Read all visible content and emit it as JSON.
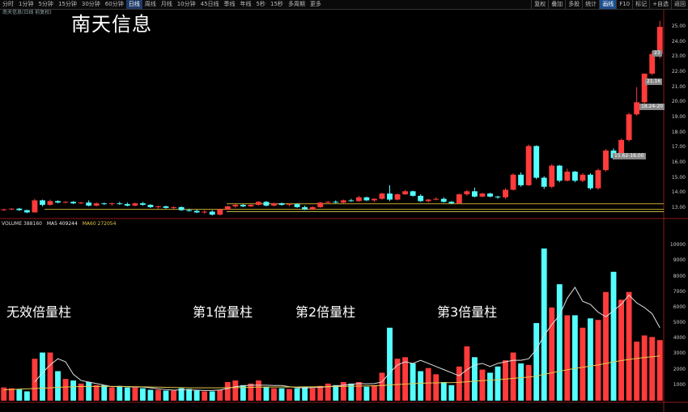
{
  "toolbar": {
    "tabs": [
      "分时",
      "1分钟",
      "5分钟",
      "15分钟",
      "30分钟",
      "60分钟",
      "日线",
      "周线",
      "月线",
      "10分钟",
      "45日线",
      "季线",
      "年线",
      "5秒",
      "15秒",
      "多周期",
      "更多"
    ],
    "active_index": 6,
    "right_tabs": [
      "复权",
      "叠加",
      "多股",
      "统计",
      "画线",
      "F10",
      "标记",
      "+自选",
      "返回"
    ],
    "right_active": 4
  },
  "stock_info": "南天信息(日线 前复权)",
  "title": "南天信息",
  "volume_legend": {
    "label": "VOLUME",
    "value": "388160",
    "ma5": "MA5 409244",
    "ma60": "MA60 272054"
  },
  "annotations": [
    "无效倍量柱",
    "第1倍量柱",
    "第2倍量柱",
    "第3倍量柱"
  ],
  "price_axis": [
    "25.00",
    "24.00",
    "23.00",
    "22.00",
    "21.00",
    "20.00",
    "19.00",
    "18.00",
    "17.00",
    "16.00",
    "15.00",
    "14.00",
    "13.00"
  ],
  "volume_axis": [
    "10000",
    "9000",
    "8000",
    "7000",
    "6000",
    "5000",
    "4000",
    "3000",
    "2000",
    "1000"
  ],
  "price_tags": [
    "23",
    "21.16",
    "18.24-20",
    "15.62-16.00"
  ],
  "colors": {
    "up": "#ff3b3b",
    "down": "#54ffff",
    "ma5": "#e0e0e0",
    "ma60": "#e6c84a",
    "support": "#c8a830"
  },
  "chart_data": {
    "type": "candlestick",
    "price_ylim": [
      12.4,
      25.6
    ],
    "volume_ylim": [
      0,
      11000
    ],
    "candles": [
      [
        12.85,
        12.95,
        12.8,
        12.9
      ],
      [
        12.9,
        12.98,
        12.85,
        12.95
      ],
      [
        12.95,
        13.0,
        12.8,
        12.85
      ],
      [
        12.85,
        12.88,
        12.65,
        12.7
      ],
      [
        12.7,
        13.6,
        12.7,
        13.5
      ],
      [
        13.5,
        13.55,
        13.1,
        13.2
      ],
      [
        13.2,
        13.55,
        13.15,
        13.45
      ],
      [
        13.45,
        13.5,
        13.3,
        13.35
      ],
      [
        13.35,
        13.45,
        13.3,
        13.4
      ],
      [
        13.4,
        13.45,
        13.25,
        13.3
      ],
      [
        13.3,
        13.4,
        13.25,
        13.35
      ],
      [
        13.35,
        13.5,
        13.1,
        13.15
      ],
      [
        13.15,
        13.35,
        13.1,
        13.3
      ],
      [
        13.3,
        13.35,
        13.2,
        13.25
      ],
      [
        13.25,
        13.35,
        13.15,
        13.3
      ],
      [
        13.3,
        13.4,
        13.2,
        13.25
      ],
      [
        13.25,
        13.35,
        13.1,
        13.15
      ],
      [
        13.15,
        13.35,
        13.1,
        13.3
      ],
      [
        13.3,
        13.4,
        13.15,
        13.2
      ],
      [
        13.2,
        13.25,
        13.0,
        13.05
      ],
      [
        13.05,
        13.15,
        12.95,
        13.1
      ],
      [
        13.1,
        13.15,
        12.95,
        13.0
      ],
      [
        13.0,
        13.1,
        12.9,
        13.05
      ],
      [
        13.05,
        13.1,
        12.8,
        12.85
      ],
      [
        12.85,
        12.95,
        12.75,
        12.8
      ],
      [
        12.8,
        12.9,
        12.65,
        12.7
      ],
      [
        12.7,
        12.85,
        12.6,
        12.75
      ],
      [
        12.75,
        12.85,
        12.5,
        12.55
      ],
      [
        12.55,
        12.95,
        12.5,
        12.9
      ],
      [
        12.9,
        13.15,
        12.85,
        13.1
      ],
      [
        13.1,
        13.25,
        13.0,
        13.2
      ],
      [
        13.2,
        13.25,
        13.05,
        13.1
      ],
      [
        13.1,
        13.25,
        13.05,
        13.2
      ],
      [
        13.2,
        13.45,
        13.15,
        13.4
      ],
      [
        13.4,
        13.45,
        13.1,
        13.15
      ],
      [
        13.15,
        13.35,
        13.1,
        13.3
      ],
      [
        13.3,
        13.35,
        13.15,
        13.2
      ],
      [
        13.2,
        13.3,
        13.1,
        13.25
      ],
      [
        13.25,
        13.3,
        13.0,
        13.05
      ],
      [
        13.05,
        13.15,
        12.85,
        12.9
      ],
      [
        12.9,
        13.1,
        12.85,
        13.05
      ],
      [
        13.05,
        13.4,
        13.0,
        13.35
      ],
      [
        13.35,
        13.45,
        13.25,
        13.4
      ],
      [
        13.4,
        13.5,
        13.3,
        13.35
      ],
      [
        13.35,
        13.55,
        13.3,
        13.5
      ],
      [
        13.5,
        13.6,
        13.4,
        13.45
      ],
      [
        13.45,
        13.8,
        13.4,
        13.7
      ],
      [
        13.7,
        13.75,
        13.45,
        13.5
      ],
      [
        13.5,
        13.65,
        13.4,
        13.6
      ],
      [
        13.6,
        14.0,
        13.55,
        13.95
      ],
      [
        13.95,
        14.5,
        13.45,
        13.55
      ],
      [
        13.55,
        13.95,
        13.5,
        13.9
      ],
      [
        13.9,
        14.2,
        13.85,
        14.1
      ],
      [
        14.1,
        14.15,
        13.75,
        13.8
      ],
      [
        13.8,
        13.9,
        13.4,
        13.45
      ],
      [
        13.45,
        13.6,
        13.35,
        13.55
      ],
      [
        13.55,
        13.7,
        13.5,
        13.6
      ],
      [
        13.6,
        13.7,
        13.35,
        13.4
      ],
      [
        13.4,
        13.45,
        13.25,
        13.3
      ],
      [
        13.3,
        13.95,
        13.25,
        13.9
      ],
      [
        13.9,
        14.2,
        13.8,
        14.1
      ],
      [
        14.1,
        14.35,
        13.7,
        13.75
      ],
      [
        13.75,
        14.0,
        13.7,
        13.95
      ],
      [
        13.95,
        14.0,
        13.7,
        13.75
      ],
      [
        13.75,
        13.8,
        13.6,
        13.7
      ],
      [
        13.7,
        14.3,
        13.6,
        14.2
      ],
      [
        14.2,
        15.3,
        14.15,
        15.2
      ],
      [
        15.2,
        15.35,
        14.4,
        14.5
      ],
      [
        14.5,
        17.2,
        14.45,
        17.1
      ],
      [
        17.1,
        17.15,
        14.9,
        15.0
      ],
      [
        15.0,
        15.1,
        14.25,
        14.4
      ],
      [
        14.4,
        15.9,
        14.3,
        15.8
      ],
      [
        15.8,
        15.85,
        14.7,
        14.8
      ],
      [
        14.8,
        15.6,
        14.75,
        15.4
      ],
      [
        15.4,
        15.45,
        14.7,
        14.8
      ],
      [
        14.8,
        15.3,
        14.7,
        15.2
      ],
      [
        15.2,
        15.3,
        14.2,
        14.3
      ],
      [
        14.3,
        15.6,
        14.2,
        15.5
      ],
      [
        15.5,
        16.9,
        15.4,
        16.8
      ],
      [
        16.8,
        16.95,
        16.2,
        16.3
      ],
      [
        16.3,
        17.6,
        16.2,
        17.5
      ],
      [
        17.5,
        19.3,
        17.4,
        19.2
      ],
      [
        19.2,
        21.0,
        19.1,
        20.0
      ],
      [
        20.0,
        21.9,
        19.9,
        21.9
      ],
      [
        21.9,
        23.4,
        21.8,
        23.2
      ],
      [
        23.2,
        25.4,
        22.9,
        25.0
      ]
    ],
    "volumes": [
      850,
      800,
      750,
      600,
      2700,
      3100,
      3100,
      1900,
      1400,
      1300,
      1100,
      1200,
      1000,
      1000,
      850,
      950,
      850,
      850,
      800,
      700,
      700,
      650,
      650,
      800,
      750,
      650,
      600,
      600,
      700,
      1200,
      1300,
      1000,
      1100,
      1300,
      900,
      800,
      800,
      750,
      800,
      900,
      800,
      950,
      1100,
      1000,
      1200,
      1100,
      1200,
      900,
      1000,
      1800,
      4700,
      2700,
      2800,
      2400,
      1900,
      2100,
      1700,
      1200,
      1000,
      2200,
      3500,
      2800,
      2000,
      1800,
      2200,
      2600,
      3100,
      2400,
      2300,
      5000,
      9800,
      6000,
      7500,
      5500,
      5500,
      4700,
      5300,
      5200,
      7000,
      8300,
      6500,
      7000,
      3800,
      4200,
      4100,
      3900
    ],
    "ma5": [
      null,
      null,
      null,
      null,
      1200,
      1800,
      2300,
      2700,
      2500,
      1700,
      1300,
      1200,
      1100,
      1000,
      900,
      920,
      900,
      880,
      880,
      830,
      760,
      720,
      680,
      700,
      700,
      680,
      660,
      660,
      690,
      780,
      900,
      960,
      1000,
      1000,
      1000,
      980,
      980,
      900,
      840,
      820,
      840,
      860,
      900,
      950,
      1000,
      1050,
      1100,
      1080,
      1100,
      1200,
      1800,
      2300,
      2500,
      2400,
      2600,
      2400,
      2200,
      2000,
      1800,
      1600,
      2000,
      2300,
      2400,
      2200,
      2400,
      2500,
      2600,
      2600,
      2700,
      3300,
      4200,
      4900,
      5500,
      6600,
      7300,
      6400,
      6200,
      5700,
      5400,
      5800,
      6200,
      6800,
      6300,
      6000,
      5600,
      4700
    ],
    "ma60": [
      700,
      720,
      740,
      760,
      780,
      800,
      830,
      860,
      880,
      900,
      910,
      920,
      920,
      920,
      920,
      920,
      910,
      900,
      890,
      880,
      870,
      860,
      850,
      840,
      830,
      830,
      830,
      830,
      830,
      840,
      840,
      850,
      860,
      870,
      870,
      880,
      880,
      880,
      880,
      890,
      890,
      900,
      900,
      910,
      920,
      930,
      940,
      950,
      960,
      980,
      1010,
      1040,
      1070,
      1100,
      1120,
      1140,
      1150,
      1160,
      1160,
      1180,
      1220,
      1260,
      1290,
      1320,
      1350,
      1390,
      1440,
      1480,
      1520,
      1580,
      1700,
      1790,
      1900,
      1990,
      2080,
      2150,
      2230,
      2300,
      2400,
      2500,
      2580,
      2660,
      2720,
      2780,
      2830,
      2880
    ]
  }
}
